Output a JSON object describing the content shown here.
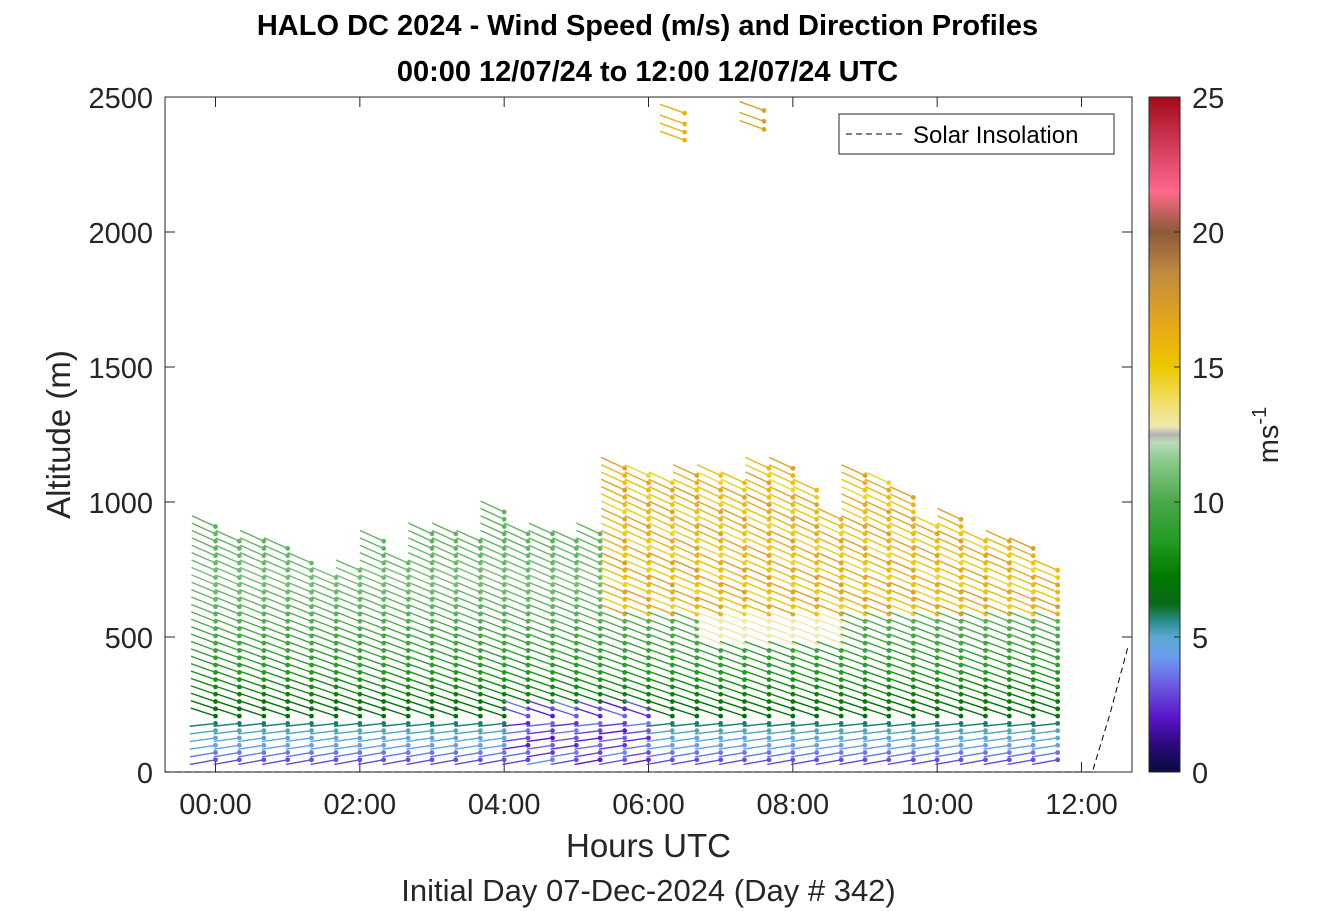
{
  "chart_data": {
    "type": "scatter",
    "title": "HALO DC 2024 - Wind Speed (m/s) and Direction Profiles",
    "subtitle": "00:00 12/07/24 to 12:00 12/07/24  UTC",
    "xlabel": "Hours UTC",
    "xlabel2": "Initial Day 07-Dec-2024 (Day # 342)",
    "ylabel": "Altitude (m)",
    "xlim": [
      -0.7,
      12.7
    ],
    "ylim": [
      0,
      2500
    ],
    "xticks": [
      0,
      2,
      4,
      6,
      8,
      10,
      12
    ],
    "xticklabels": [
      "00:00",
      "02:00",
      "04:00",
      "06:00",
      "08:00",
      "10:00",
      "12:00"
    ],
    "yticks": [
      0,
      500,
      1000,
      1500,
      2000,
      2500
    ],
    "yticklabels": [
      "0",
      "500",
      "1000",
      "1500",
      "2000",
      "2500"
    ],
    "legend": {
      "entry": "Solar Insolation",
      "position": "top-right"
    },
    "colorbar": {
      "label": "ms-1",
      "label_main": "ms",
      "label_sup": "-1",
      "range": [
        0,
        25
      ],
      "ticks": [
        0,
        5,
        10,
        15,
        20,
        25
      ],
      "ticklabels": [
        "0",
        "5",
        "10",
        "15",
        "20",
        "25"
      ],
      "stops": [
        [
          0,
          "#0a0a3c"
        ],
        [
          1,
          "#2a0a7a"
        ],
        [
          2,
          "#5a14c8"
        ],
        [
          3.2,
          "#6a5ae0"
        ],
        [
          4.2,
          "#6a9af0"
        ],
        [
          5,
          "#5aaad0"
        ],
        [
          5.6,
          "#2a8a8a"
        ],
        [
          6.2,
          "#0a6a1a"
        ],
        [
          7.2,
          "#007800"
        ],
        [
          8.5,
          "#229a22"
        ],
        [
          10,
          "#4aa84a"
        ],
        [
          11.5,
          "#8ac88a"
        ],
        [
          12.2,
          "#b8dcb8"
        ],
        [
          12.5,
          "#b4b4b4"
        ],
        [
          12.8,
          "#f0e8b0"
        ],
        [
          13.6,
          "#f2e070"
        ],
        [
          15,
          "#ecc800"
        ],
        [
          16.5,
          "#e8a818"
        ],
        [
          18.5,
          "#c08a40"
        ],
        [
          20,
          "#8a5a3a"
        ],
        [
          21.5,
          "#ff6a8a"
        ],
        [
          23,
          "#d84060"
        ],
        [
          25,
          "#a00a1a"
        ]
      ]
    },
    "series": [
      {
        "name": "Solar Insolation",
        "x": [
          -0.7,
          11.95,
          12.15,
          12.4,
          12.65
        ],
        "y": [
          0,
          0,
          0,
          220,
          470
        ]
      }
    ],
    "wind_profiles": {
      "times": [
        0,
        0.33,
        0.67,
        1.0,
        1.33,
        1.67,
        2.0,
        2.33,
        2.67,
        3.0,
        3.33,
        3.67,
        4.0,
        4.33,
        4.67,
        5.0,
        5.33,
        5.67,
        6.0,
        6.33,
        6.67,
        7.0,
        7.33,
        7.67,
        8.0,
        8.33,
        8.67,
        9.0,
        9.33,
        9.67,
        10.0,
        10.33,
        10.67,
        11.0,
        11.33,
        11.67
      ],
      "top_m": [
        930,
        880,
        860,
        850,
        780,
        740,
        760,
        860,
        790,
        900,
        900,
        870,
        980,
        900,
        900,
        880,
        900,
        1140,
        1120,
        1090,
        1100,
        1100,
        1090,
        1140,
        1130,
        1060,
        960,
        1100,
        1090,
        1020,
        920,
        940,
        870,
        870,
        840,
        760
      ],
      "altitude_step_m": 27,
      "speed_profile_ms": [
        {
          "altitude_m": 50,
          "speed_ms": 3
        },
        {
          "altitude_m": 100,
          "speed_ms": 4.5
        },
        {
          "altitude_m": 160,
          "speed_ms": 5.2
        },
        {
          "altitude_m": 220,
          "speed_ms": 7
        },
        {
          "altitude_m": 350,
          "speed_ms": 8.5
        },
        {
          "altitude_m": 500,
          "speed_ms": 10
        },
        {
          "altitude_m": 700,
          "speed_ms": 11
        },
        {
          "altitude_m": 850,
          "speed_ms": 10.5
        }
      ],
      "upper_speed_ms": 15.5,
      "high_level_profiles": [
        {
          "time": 6.5,
          "altitudes_m": [
            2340,
            2370,
            2400,
            2440
          ],
          "speed_ms": 16
        },
        {
          "time": 7.6,
          "altitudes_m": [
            2380,
            2410,
            2450
          ],
          "speed_ms": 17
        }
      ]
    }
  }
}
